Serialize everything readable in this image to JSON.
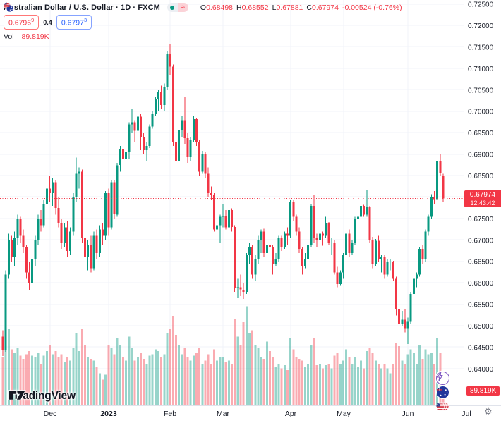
{
  "header": {
    "symbol_title": "Australian Dollar / U.S. Dollar · 1D · FXCM",
    "status_approx_glyph": "≈",
    "ohlc": {
      "o_label": "O",
      "o": "0.68498",
      "h_label": "H",
      "h": "0.68552",
      "l_label": "L",
      "l": "0.67881",
      "c_label": "C",
      "c": "0.67974",
      "change": "-0.00524 (-0.76%)"
    },
    "bid": "0.6796",
    "bid_sup": "9",
    "spread": "0.4",
    "ask": "0.6797",
    "ask_sup": "3",
    "vol_label": "Vol",
    "vol_value": "89.819K"
  },
  "price_axis": {
    "tick_labels": [
      "0.72500",
      "0.72000",
      "0.71500",
      "0.71000",
      "0.70500",
      "0.70000",
      "0.69500",
      "0.69000",
      "0.68500",
      "0.67500",
      "0.67000",
      "0.66500",
      "0.66000",
      "0.65500",
      "0.65000",
      "0.64500",
      "0.64000"
    ],
    "hidden_gridline_price": 0.68,
    "current_price": "0.67974",
    "countdown": "12:43:42"
  },
  "volume_axis": {
    "current_volume_label": "89.819K"
  },
  "branding": {
    "logo_text": "TradingView"
  },
  "footer": {
    "gear_glyph": "⚙"
  },
  "colors": {
    "up": "#089981",
    "down": "#f23645",
    "grid": "#f0f3fa",
    "axis_text": "#131722",
    "separator": "#e0e3eb",
    "accent_blue": "#2962ff",
    "accent_red": "#f23645"
  },
  "chart_data": {
    "type": "candlestick",
    "title": "Australian Dollar / U.S. Dollar",
    "symbol": "AUD/USD",
    "interval": "1D",
    "exchange": "FXCM",
    "indicator": "Volume",
    "y_axis_range": [
      0.6315,
      0.726
    ],
    "grid": true,
    "last_price_line": {
      "price": 0.67974,
      "countdown": "12:43:42"
    },
    "last_volume": {
      "label": "89.819K",
      "value_k": 90
    },
    "time_axis_months": [
      {
        "label": "Dec",
        "index": 16
      },
      {
        "label": "2023",
        "index": 36,
        "bold": true
      },
      {
        "label": "Feb",
        "index": 57
      },
      {
        "label": "Mar",
        "index": 75
      },
      {
        "label": "Apr",
        "index": 98
      },
      {
        "label": "May",
        "index": 116
      },
      {
        "label": "Jun",
        "index": 138
      },
      {
        "label": "Jul",
        "index": 158
      }
    ],
    "candles_format": [
      "open",
      "high",
      "low",
      "close",
      "volume_k"
    ],
    "candles": [
      [
        0.6475,
        0.649,
        0.643,
        0.6445,
        300
      ],
      [
        0.6445,
        0.663,
        0.644,
        0.662,
        560
      ],
      [
        0.662,
        0.6715,
        0.661,
        0.67,
        480
      ],
      [
        0.67,
        0.671,
        0.665,
        0.666,
        350
      ],
      [
        0.666,
        0.672,
        0.664,
        0.6705,
        330
      ],
      [
        0.6705,
        0.676,
        0.669,
        0.675,
        360
      ],
      [
        0.675,
        0.6755,
        0.6695,
        0.671,
        310
      ],
      [
        0.671,
        0.6725,
        0.667,
        0.6685,
        290
      ],
      [
        0.6685,
        0.669,
        0.661,
        0.6625,
        320
      ],
      [
        0.6625,
        0.665,
        0.6585,
        0.66,
        340
      ],
      [
        0.66,
        0.667,
        0.659,
        0.6655,
        310
      ],
      [
        0.6655,
        0.671,
        0.664,
        0.67,
        300
      ],
      [
        0.67,
        0.676,
        0.669,
        0.675,
        330
      ],
      [
        0.675,
        0.677,
        0.672,
        0.6735,
        260
      ],
      [
        0.6735,
        0.6795,
        0.673,
        0.6785,
        310
      ],
      [
        0.6785,
        0.683,
        0.677,
        0.682,
        340
      ],
      [
        0.682,
        0.685,
        0.679,
        0.681,
        380
      ],
      [
        0.681,
        0.6845,
        0.678,
        0.6835,
        320
      ],
      [
        0.6835,
        0.684,
        0.676,
        0.6775,
        340
      ],
      [
        0.6775,
        0.68,
        0.673,
        0.674,
        300
      ],
      [
        0.674,
        0.675,
        0.668,
        0.6695,
        320
      ],
      [
        0.6695,
        0.674,
        0.6685,
        0.673,
        270
      ],
      [
        0.673,
        0.6745,
        0.666,
        0.6675,
        300
      ],
      [
        0.6675,
        0.673,
        0.6665,
        0.672,
        280
      ],
      [
        0.672,
        0.681,
        0.671,
        0.68,
        360
      ],
      [
        0.68,
        0.6893,
        0.679,
        0.6855,
        450
      ],
      [
        0.6855,
        0.687,
        0.682,
        0.686,
        340
      ],
      [
        0.686,
        0.6865,
        0.6695,
        0.6705,
        480
      ],
      [
        0.6705,
        0.6725,
        0.665,
        0.666,
        380
      ],
      [
        0.666,
        0.67,
        0.663,
        0.669,
        300
      ],
      [
        0.669,
        0.671,
        0.6625,
        0.6635,
        290
      ],
      [
        0.6635,
        0.672,
        0.663,
        0.671,
        280
      ],
      [
        0.671,
        0.6725,
        0.6655,
        0.667,
        240
      ],
      [
        0.667,
        0.6735,
        0.666,
        0.6725,
        200
      ],
      [
        0.6725,
        0.674,
        0.669,
        0.671,
        160
      ],
      [
        0.671,
        0.6815,
        0.67,
        0.681,
        190
      ],
      [
        0.681,
        0.682,
        0.671,
        0.673,
        380
      ],
      [
        0.673,
        0.684,
        0.6725,
        0.6835,
        360
      ],
      [
        0.6835,
        0.684,
        0.675,
        0.676,
        320
      ],
      [
        0.676,
        0.688,
        0.6755,
        0.6875,
        420
      ],
      [
        0.6875,
        0.692,
        0.686,
        0.6913,
        380
      ],
      [
        0.6913,
        0.692,
        0.687,
        0.689,
        300
      ],
      [
        0.689,
        0.691,
        0.6865,
        0.6905,
        280
      ],
      [
        0.6905,
        0.6975,
        0.689,
        0.697,
        430
      ],
      [
        0.697,
        0.7005,
        0.695,
        0.6975,
        360
      ],
      [
        0.6975,
        0.698,
        0.693,
        0.6955,
        280
      ],
      [
        0.6955,
        0.7,
        0.6945,
        0.6988,
        300
      ],
      [
        0.6988,
        0.6995,
        0.691,
        0.694,
        330
      ],
      [
        0.694,
        0.695,
        0.69,
        0.691,
        290
      ],
      [
        0.691,
        0.693,
        0.6885,
        0.692,
        260
      ],
      [
        0.692,
        0.697,
        0.6915,
        0.6965,
        310
      ],
      [
        0.6965,
        0.7,
        0.696,
        0.6995,
        320
      ],
      [
        0.6995,
        0.7035,
        0.699,
        0.703,
        350
      ],
      [
        0.703,
        0.705,
        0.7,
        0.7045,
        340
      ],
      [
        0.7045,
        0.706,
        0.7005,
        0.7015,
        300
      ],
      [
        0.7015,
        0.7065,
        0.7,
        0.7057,
        320
      ],
      [
        0.7057,
        0.714,
        0.705,
        0.7135,
        450
      ],
      [
        0.7135,
        0.7157,
        0.7085,
        0.7105,
        480
      ],
      [
        0.7105,
        0.711,
        0.692,
        0.6928,
        560
      ],
      [
        0.6928,
        0.695,
        0.6855,
        0.6885,
        440
      ],
      [
        0.6885,
        0.6965,
        0.688,
        0.6958,
        380
      ],
      [
        0.6958,
        0.699,
        0.694,
        0.698,
        320
      ],
      [
        0.698,
        0.7035,
        0.6925,
        0.6938,
        360
      ],
      [
        0.6938,
        0.695,
        0.688,
        0.6895,
        300
      ],
      [
        0.6895,
        0.694,
        0.6885,
        0.6935,
        280
      ],
      [
        0.6935,
        0.699,
        0.693,
        0.6982,
        310
      ],
      [
        0.6982,
        0.6985,
        0.692,
        0.693,
        330
      ],
      [
        0.693,
        0.6935,
        0.685,
        0.686,
        360
      ],
      [
        0.686,
        0.6908,
        0.6855,
        0.69,
        260
      ],
      [
        0.69,
        0.6907,
        0.6845,
        0.6855,
        280
      ],
      [
        0.6855,
        0.687,
        0.68,
        0.681,
        320
      ],
      [
        0.681,
        0.6825,
        0.6795,
        0.6805,
        260
      ],
      [
        0.6805,
        0.681,
        0.672,
        0.6725,
        350
      ],
      [
        0.6725,
        0.676,
        0.671,
        0.6735,
        280
      ],
      [
        0.6735,
        0.676,
        0.6695,
        0.6755,
        300
      ],
      [
        0.6755,
        0.6785,
        0.673,
        0.6756,
        300
      ],
      [
        0.6756,
        0.677,
        0.6725,
        0.673,
        270
      ],
      [
        0.673,
        0.6775,
        0.672,
        0.677,
        280
      ],
      [
        0.677,
        0.6774,
        0.672,
        0.6731,
        260
      ],
      [
        0.6731,
        0.6735,
        0.658,
        0.6588,
        540
      ],
      [
        0.6588,
        0.661,
        0.6566,
        0.659,
        430
      ],
      [
        0.659,
        0.662,
        0.657,
        0.6585,
        380
      ],
      [
        0.6585,
        0.66,
        0.6563,
        0.658,
        520
      ],
      [
        0.658,
        0.667,
        0.6575,
        0.6665,
        620
      ],
      [
        0.6665,
        0.6694,
        0.6645,
        0.6685,
        450
      ],
      [
        0.6685,
        0.669,
        0.661,
        0.662,
        470
      ],
      [
        0.662,
        0.6665,
        0.6605,
        0.6655,
        380
      ],
      [
        0.6655,
        0.671,
        0.6645,
        0.67,
        360
      ],
      [
        0.67,
        0.6725,
        0.667,
        0.672,
        300
      ],
      [
        0.672,
        0.6727,
        0.666,
        0.667,
        290
      ],
      [
        0.667,
        0.6758,
        0.6655,
        0.669,
        400
      ],
      [
        0.669,
        0.6695,
        0.6625,
        0.6685,
        340
      ],
      [
        0.6685,
        0.669,
        0.662,
        0.6645,
        300
      ],
      [
        0.6645,
        0.667,
        0.664,
        0.6655,
        240
      ],
      [
        0.6655,
        0.671,
        0.665,
        0.6705,
        260
      ],
      [
        0.6705,
        0.671,
        0.6675,
        0.6685,
        230
      ],
      [
        0.6685,
        0.672,
        0.668,
        0.6715,
        250
      ],
      [
        0.6715,
        0.673,
        0.669,
        0.671,
        220
      ],
      [
        0.671,
        0.6795,
        0.6705,
        0.6788,
        420
      ],
      [
        0.6788,
        0.6793,
        0.6745,
        0.6755,
        350
      ],
      [
        0.6755,
        0.676,
        0.671,
        0.672,
        300
      ],
      [
        0.672,
        0.673,
        0.667,
        0.668,
        290
      ],
      [
        0.668,
        0.6685,
        0.662,
        0.664,
        280
      ],
      [
        0.664,
        0.667,
        0.6635,
        0.6655,
        240
      ],
      [
        0.6655,
        0.6695,
        0.665,
        0.669,
        260
      ],
      [
        0.669,
        0.6785,
        0.6685,
        0.678,
        380
      ],
      [
        0.678,
        0.6806,
        0.6695,
        0.6705,
        420
      ],
      [
        0.6705,
        0.6715,
        0.6685,
        0.67,
        250
      ],
      [
        0.67,
        0.6737,
        0.6695,
        0.6715,
        260
      ],
      [
        0.6715,
        0.672,
        0.6687,
        0.671,
        230
      ],
      [
        0.671,
        0.6755,
        0.6705,
        0.674,
        250
      ],
      [
        0.674,
        0.6742,
        0.669,
        0.6695,
        260
      ],
      [
        0.6695,
        0.6705,
        0.6665,
        0.6695,
        230
      ],
      [
        0.6695,
        0.67,
        0.662,
        0.6625,
        310
      ],
      [
        0.6625,
        0.6638,
        0.659,
        0.6598,
        330
      ],
      [
        0.6598,
        0.663,
        0.6595,
        0.6625,
        260
      ],
      [
        0.6625,
        0.667,
        0.661,
        0.6665,
        280
      ],
      [
        0.6665,
        0.672,
        0.663,
        0.6715,
        350
      ],
      [
        0.6715,
        0.6725,
        0.666,
        0.667,
        300
      ],
      [
        0.667,
        0.67,
        0.6665,
        0.6695,
        260
      ],
      [
        0.6695,
        0.6755,
        0.669,
        0.675,
        300
      ],
      [
        0.675,
        0.676,
        0.6735,
        0.6755,
        240
      ],
      [
        0.6755,
        0.6785,
        0.675,
        0.678,
        280
      ],
      [
        0.678,
        0.6783,
        0.6755,
        0.676,
        230
      ],
      [
        0.676,
        0.6818,
        0.6755,
        0.6778,
        340
      ],
      [
        0.6778,
        0.678,
        0.6693,
        0.67,
        360
      ],
      [
        0.67,
        0.6708,
        0.6635,
        0.6645,
        330
      ],
      [
        0.6645,
        0.6703,
        0.664,
        0.6699,
        280
      ],
      [
        0.6699,
        0.671,
        0.665,
        0.6655,
        260
      ],
      [
        0.6655,
        0.6665,
        0.6625,
        0.666,
        230
      ],
      [
        0.666,
        0.6665,
        0.661,
        0.662,
        260
      ],
      [
        0.662,
        0.6655,
        0.6615,
        0.665,
        230
      ],
      [
        0.665,
        0.6655,
        0.663,
        0.665,
        200
      ],
      [
        0.665,
        0.6652,
        0.6605,
        0.661,
        260
      ],
      [
        0.661,
        0.6615,
        0.6525,
        0.654,
        390
      ],
      [
        0.654,
        0.655,
        0.649,
        0.6505,
        370
      ],
      [
        0.6505,
        0.6535,
        0.65,
        0.6515,
        280
      ],
      [
        0.6515,
        0.654,
        0.6485,
        0.6495,
        260
      ],
      [
        0.6495,
        0.652,
        0.6458,
        0.651,
        320
      ],
      [
        0.651,
        0.658,
        0.6505,
        0.6575,
        350
      ],
      [
        0.6575,
        0.6615,
        0.657,
        0.661,
        330
      ],
      [
        0.661,
        0.6625,
        0.659,
        0.662,
        260
      ],
      [
        0.662,
        0.6685,
        0.6615,
        0.668,
        380
      ],
      [
        0.668,
        0.669,
        0.6645,
        0.6655,
        290
      ],
      [
        0.6655,
        0.6725,
        0.665,
        0.672,
        350
      ],
      [
        0.672,
        0.676,
        0.671,
        0.6755,
        320
      ],
      [
        0.6755,
        0.6807,
        0.675,
        0.68,
        330
      ],
      [
        0.68,
        0.6815,
        0.6785,
        0.6796,
        260
      ],
      [
        0.6796,
        0.6898,
        0.679,
        0.6885,
        420
      ],
      [
        0.6885,
        0.69,
        0.685,
        0.6856,
        330
      ],
      [
        0.68498,
        0.68552,
        0.67881,
        0.67974,
        90
      ]
    ]
  }
}
